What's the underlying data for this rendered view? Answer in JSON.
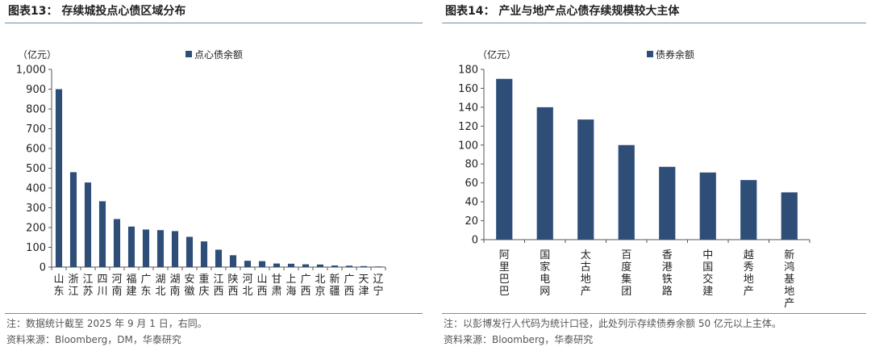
{
  "left": {
    "title": "图表13：  存续城投点心债区域分布",
    "note": "注：数据统计截至 2025 年 9 月 1 日，右同。",
    "source": "资料来源：Bloomberg，DM，华泰研究"
  },
  "right": {
    "title": "图表14：  产业与地产点心债存续规模较大主体",
    "note": "注：以彭博发行人代码为统计口径，此处列示存续债券余额 50 亿元以上主体。",
    "source": "资料来源：Bloomberg，华泰研究"
  },
  "colors": {
    "bar": "#2e4e78",
    "axis": "#555555",
    "rule": "#6e8fb0"
  },
  "chart_data": [
    {
      "type": "bar",
      "unit_label": "（亿元）",
      "legend": "点心债余额",
      "legend_position": "top",
      "grid": false,
      "ylim": [
        0,
        1000
      ],
      "yticks": [
        "0",
        "100",
        "200",
        "300",
        "400",
        "500",
        "600",
        "700",
        "800",
        "900",
        "1,000"
      ],
      "categories": [
        "山东",
        "浙江",
        "江苏",
        "四川",
        "河南",
        "福建",
        "广东",
        "湖北",
        "湖南",
        "安徽",
        "重庆",
        "江西",
        "陕西",
        "河北",
        "山西",
        "甘肃",
        "上海",
        "广西",
        "北京",
        "新疆",
        "广西",
        "天津",
        "辽宁"
      ],
      "values": [
        900,
        480,
        428,
        333,
        243,
        205,
        190,
        187,
        182,
        153,
        130,
        88,
        60,
        32,
        30,
        18,
        17,
        14,
        13,
        8,
        7,
        5,
        3
      ]
    },
    {
      "type": "bar",
      "unit_label": "（亿元）",
      "legend": "债券余额",
      "legend_position": "top",
      "grid": false,
      "ylim": [
        0,
        180
      ],
      "yticks": [
        "0",
        "20",
        "40",
        "60",
        "80",
        "100",
        "120",
        "140",
        "160",
        "180"
      ],
      "categories": [
        "阿里巴巴",
        "国家电网",
        "太古地产",
        "百度集团",
        "香港铁路",
        "中国交建",
        "越秀地产",
        "新鸿基地产"
      ],
      "values": [
        170,
        140,
        127,
        100,
        77,
        71,
        63,
        50
      ]
    }
  ]
}
